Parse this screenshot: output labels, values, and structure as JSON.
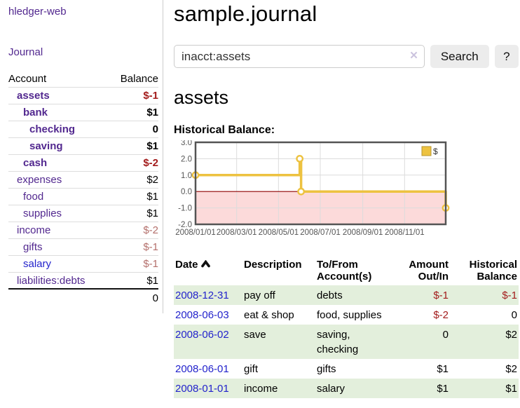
{
  "colors": {
    "link_purple": "#52288f",
    "link_blue": "#2323cc",
    "negative_strong": "#a31c1c",
    "negative_soft": "#b4706c",
    "row_green": "#e3efdc",
    "button_bg": "#ececec",
    "chart_line": "#edc240",
    "chart_negative_fill": "#fcdada",
    "chart_zero_line": "#8f0000"
  },
  "app": {
    "title": "hledger-web",
    "nav_journal": "Journal"
  },
  "sidebar": {
    "header": {
      "account": "Account",
      "balance": "Balance"
    },
    "accounts": [
      {
        "name": "assets",
        "depth": 1,
        "balance": "$-1",
        "bold": true,
        "name_style": "purple",
        "bal_style": "neg-strong"
      },
      {
        "name": "bank",
        "depth": 2,
        "balance": "$1",
        "bold": true,
        "name_style": "purple",
        "bal_style": ""
      },
      {
        "name": "checking",
        "depth": 3,
        "balance": "0",
        "bold": true,
        "name_style": "purple",
        "bal_style": ""
      },
      {
        "name": "saving",
        "depth": 3,
        "balance": "$1",
        "bold": true,
        "name_style": "purple",
        "bal_style": ""
      },
      {
        "name": "cash",
        "depth": 2,
        "balance": "$-2",
        "bold": true,
        "name_style": "purple",
        "bal_style": "neg-strong"
      },
      {
        "name": "expenses",
        "depth": 1,
        "balance": "$2",
        "bold": false,
        "name_style": "purple",
        "bal_style": ""
      },
      {
        "name": "food",
        "depth": 2,
        "balance": "$1",
        "bold": false,
        "name_style": "purple",
        "bal_style": ""
      },
      {
        "name": "supplies",
        "depth": 2,
        "balance": "$1",
        "bold": false,
        "name_style": "purple",
        "bal_style": ""
      },
      {
        "name": "income",
        "depth": 1,
        "balance": "$-2",
        "bold": false,
        "name_style": "purple",
        "bal_style": "neg-soft"
      },
      {
        "name": "gifts",
        "depth": 2,
        "balance": "$-1",
        "bold": false,
        "name_style": "purple",
        "bal_style": "neg-soft"
      },
      {
        "name": "salary",
        "depth": 2,
        "balance": "$-1",
        "bold": false,
        "name_style": "blue",
        "bal_style": "neg-soft"
      },
      {
        "name": "liabilities:debts",
        "depth": 1,
        "balance": "$1",
        "bold": false,
        "name_style": "purple",
        "bal_style": ""
      }
    ],
    "total": "0"
  },
  "main": {
    "title": "sample.journal",
    "search": {
      "query": "inacct:assets",
      "clear_icon": "✕",
      "button": "Search",
      "help_button": "?"
    },
    "account_heading": "assets",
    "chart_label": "Historical Balance:",
    "chart_data": {
      "type": "line",
      "step": true,
      "title": "Historical Balance:",
      "series": [
        {
          "name": "$",
          "color": "#edc240",
          "points": [
            [
              "2008-01-01",
              1.0
            ],
            [
              "2008-06-01",
              2.0
            ],
            [
              "2008-06-03",
              0.0
            ],
            [
              "2008-12-31",
              -1.0
            ]
          ]
        }
      ],
      "x_range": [
        "2008-01-01",
        "2008-12-31"
      ],
      "x_ticks": [
        "2008/01/01",
        "2008/03/01",
        "2008/05/01",
        "2008/07/01",
        "2008/09/01",
        "2008/11/01"
      ],
      "y_ticks": [
        3.0,
        2.0,
        1.0,
        0.0,
        -1.0,
        -2.0
      ],
      "ylim": [
        -2.0,
        3.0
      ],
      "grid": true,
      "legend_position": "top-right",
      "negative_region_color": "#fcdada",
      "zero_line_color": "#8f0000"
    },
    "register": {
      "columns": [
        "Date",
        "Description",
        "To/From Account(s)",
        "Amount Out/In",
        "Historical Balance"
      ],
      "rows": [
        {
          "date": "2008-12-31",
          "description": "pay off",
          "accounts": "debts",
          "amount": "$-1",
          "amount_neg": true,
          "balance": "$-1",
          "balance_neg": true
        },
        {
          "date": "2008-06-03",
          "description": "eat & shop",
          "accounts": "food, supplies",
          "amount": "$-2",
          "amount_neg": true,
          "balance": "0",
          "balance_neg": false
        },
        {
          "date": "2008-06-02",
          "description": "save",
          "accounts": "saving,\nchecking",
          "amount": "0",
          "amount_neg": false,
          "balance": "$2",
          "balance_neg": false
        },
        {
          "date": "2008-06-01",
          "description": "gift",
          "accounts": "gifts",
          "amount": "$1",
          "amount_neg": false,
          "balance": "$2",
          "balance_neg": false
        },
        {
          "date": "2008-01-01",
          "description": "income",
          "accounts": "salary",
          "amount": "$1",
          "amount_neg": false,
          "balance": "$1",
          "balance_neg": false
        }
      ]
    }
  }
}
